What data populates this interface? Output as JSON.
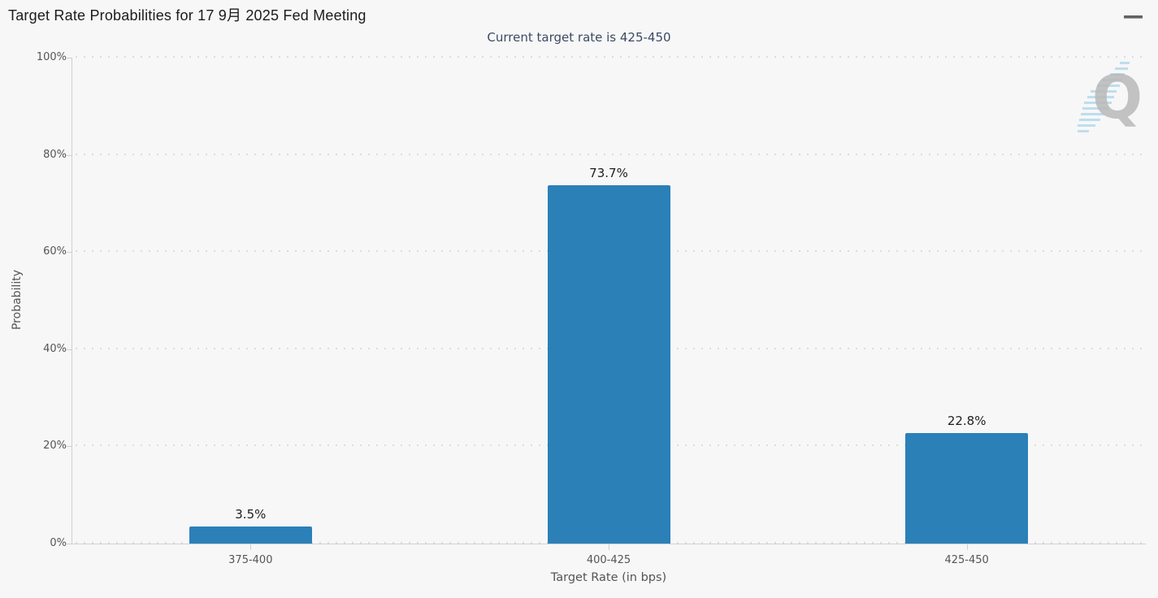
{
  "header": {
    "title": "Target Rate Probabilities for 17 9月 2025 Fed Meeting"
  },
  "subtitle": "Current target rate is 425-450",
  "menu": {
    "icon": "hamburger-menu-icon"
  },
  "watermark": {
    "letter": "Q"
  },
  "colors": {
    "background": "#f7f7f7",
    "bar": "#2b80b8",
    "subtitle_text": "#3c4b63",
    "axis_line": "#cfcfcf",
    "grid_dots": "#dcdcdc",
    "tick_text": "#555555",
    "title_text": "#1c1c1c",
    "watermark_gray": "#b9b9b9",
    "watermark_blue": "#b8dcec"
  },
  "chart_data": {
    "type": "bar",
    "title": "Target Rate Probabilities for 17 9月 2025 Fed Meeting",
    "subtitle": "Current target rate is 425-450",
    "categories": [
      "375-400",
      "400-425",
      "425-450"
    ],
    "values": [
      3.5,
      73.7,
      22.8
    ],
    "value_labels": [
      "3.5%",
      "73.7%",
      "22.8%"
    ],
    "xlabel": "Target Rate (in bps)",
    "ylabel": "Probability",
    "ylim": [
      0,
      100
    ],
    "yticks": [
      0,
      20,
      40,
      60,
      80,
      100
    ],
    "ytick_labels": [
      "0%",
      "20%",
      "40%",
      "60%",
      "80%",
      "100%"
    ],
    "grid": "dotted horizontal gridlines",
    "legend": "none",
    "bar_color": "#2b80b8"
  }
}
